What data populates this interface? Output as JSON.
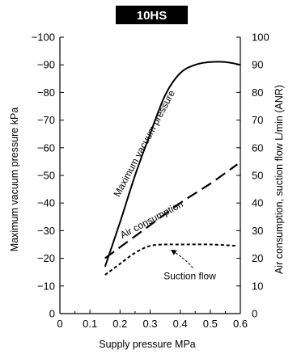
{
  "chart_data": {
    "type": "line",
    "title": "10HS",
    "xlabel": "Supply pressure MPa",
    "ylabel_left": "Maximum vacuum pressure  kPa",
    "ylabel_right": "Air consumption, suction flow L/min (ANR)",
    "xlim": [
      0,
      0.6
    ],
    "ylim_left": [
      0,
      -100
    ],
    "ylim_right": [
      0,
      100
    ],
    "x_ticks": [
      "0",
      "0.1",
      "0.2",
      "0.3",
      "0.4",
      "0.5",
      "0.6"
    ],
    "y_ticks_left": [
      "0",
      "−10",
      "−20",
      "−30",
      "−40",
      "−50",
      "−60",
      "−70",
      "−80",
      "−90",
      "−100"
    ],
    "y_ticks_right": [
      "0",
      "10",
      "20",
      "30",
      "40",
      "50",
      "60",
      "70",
      "80",
      "90",
      "100"
    ],
    "grid": false,
    "series": [
      {
        "name": "Maximum vacuum pressure",
        "axis": "left",
        "style": "solid",
        "x": [
          0.15,
          0.2,
          0.25,
          0.3,
          0.35,
          0.4,
          0.45,
          0.5,
          0.55,
          0.6
        ],
        "y": [
          -17,
          -33,
          -50,
          -65,
          -79,
          -87,
          -90,
          -91,
          -91,
          -90
        ]
      },
      {
        "name": "Air consumption",
        "axis": "right",
        "style": "dashed",
        "x": [
          0.15,
          0.2,
          0.3,
          0.4,
          0.5,
          0.59
        ],
        "y": [
          20,
          24,
          32,
          40,
          47,
          54
        ]
      },
      {
        "name": "Suction flow",
        "axis": "right",
        "style": "dotted",
        "x": [
          0.15,
          0.2,
          0.25,
          0.3,
          0.35,
          0.4,
          0.5,
          0.59
        ],
        "y": [
          14,
          18,
          22,
          24.5,
          25,
          25,
          25,
          24.5
        ]
      }
    ],
    "annotations": [
      {
        "text": "Maximum vacuum pressure",
        "x": 0.29,
        "y": -61,
        "angle": -62
      },
      {
        "text": "Air consumption",
        "x": 0.31,
        "y": 33,
        "angle": -28
      },
      {
        "text": "Suction flow",
        "x": 0.345,
        "y": 12.5,
        "arrow_to": [
          0.37,
          23
        ]
      }
    ],
    "colors": {
      "line": "#000000",
      "badge": "#000000"
    }
  }
}
